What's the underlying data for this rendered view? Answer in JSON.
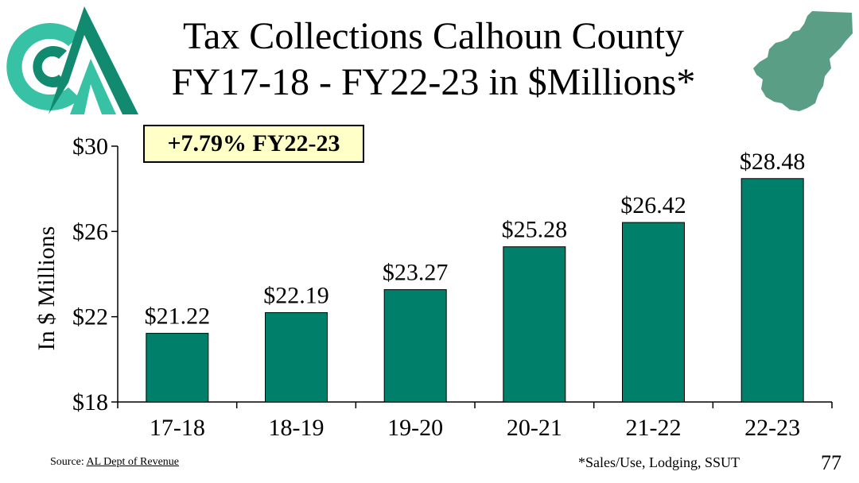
{
  "title": {
    "line1": "Tax Collections Calhoun County",
    "line2": "FY17-18 - FY22-23 in $Millions*"
  },
  "badge": "+7.79% FY22-23",
  "source_label": "Source:",
  "source_name": "AL Dept of Revenue",
  "footnote": "*Sales/Use, Lodging, SSUT",
  "page_number": "77",
  "colors": {
    "bar": "#00806a",
    "logo_dark": "#128a70",
    "logo_light": "#37c2a5",
    "map": "#5b9e86"
  },
  "chart_data": {
    "type": "bar",
    "categories": [
      "17-18",
      "18-19",
      "19-20",
      "20-21",
      "21-22",
      "22-23"
    ],
    "values": [
      21.22,
      22.19,
      23.27,
      25.28,
      26.42,
      28.48
    ],
    "value_labels": [
      "$21.22",
      "$22.19",
      "$23.27",
      "$25.28",
      "$26.42",
      "$28.48"
    ],
    "ylabel": "In $ Millions",
    "ylim": [
      18,
      30
    ],
    "yticks": [
      18,
      22,
      26,
      30
    ],
    "ytick_labels": [
      "$18",
      "$22",
      "$26",
      "$30"
    ],
    "grid": false,
    "legend": "none"
  }
}
